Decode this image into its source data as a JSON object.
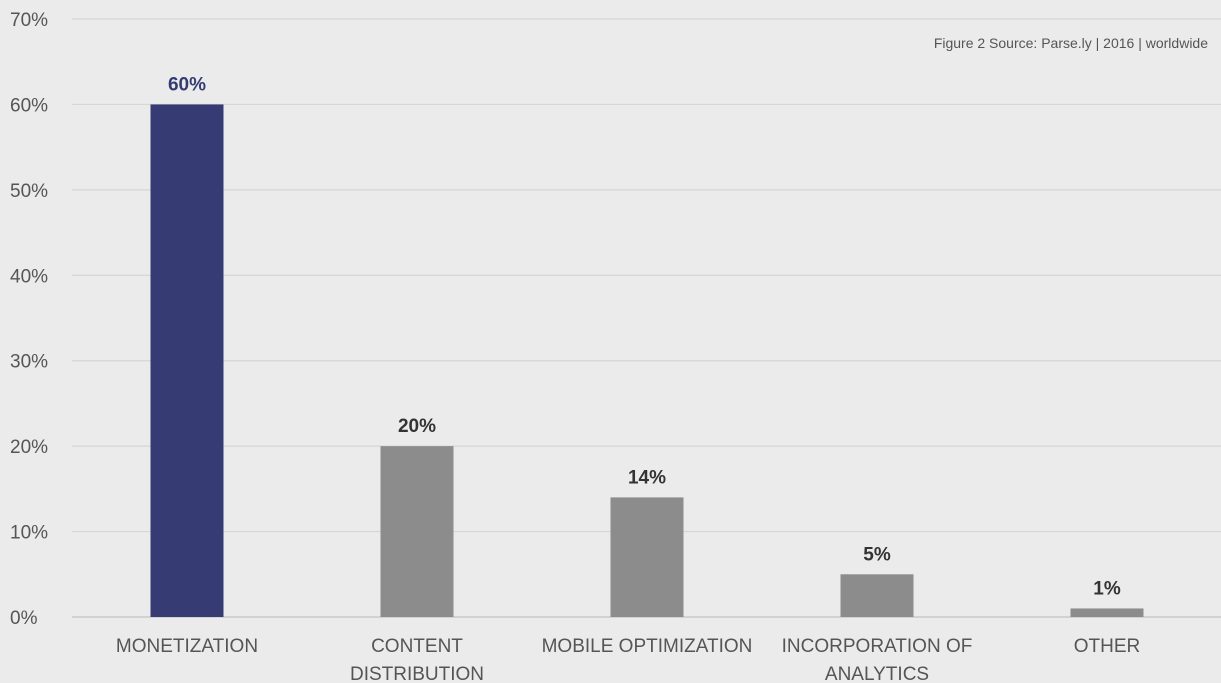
{
  "chart_data": {
    "type": "bar",
    "source_note": "Figure 2 Source: Parse.ly | 2016 | worldwide",
    "categories": [
      [
        "MONETIZATION"
      ],
      [
        "CONTENT",
        "DISTRIBUTION"
      ],
      [
        "MOBILE OPTIMIZATION"
      ],
      [
        "INCORPORATION OF",
        "ANALYTICS"
      ],
      [
        "OTHER"
      ]
    ],
    "values": [
      60,
      20,
      14,
      5,
      1
    ],
    "data_labels": [
      "60%",
      "20%",
      "14%",
      "5%",
      "1%"
    ],
    "bar_colors": [
      "#363c73",
      "#8c8c8c",
      "#8c8c8c",
      "#8c8c8c",
      "#8c8c8c"
    ],
    "label_colors": [
      "#363c73",
      "#333333",
      "#333333",
      "#333333",
      "#333333"
    ],
    "y_ticks": [
      0,
      10,
      20,
      30,
      40,
      50,
      60,
      70
    ],
    "y_tick_labels": [
      "0%",
      "10%",
      "20%",
      "30%",
      "40%",
      "50%",
      "60%",
      "70%"
    ],
    "ylim": [
      0,
      70
    ],
    "grid": true,
    "legend": "none"
  }
}
